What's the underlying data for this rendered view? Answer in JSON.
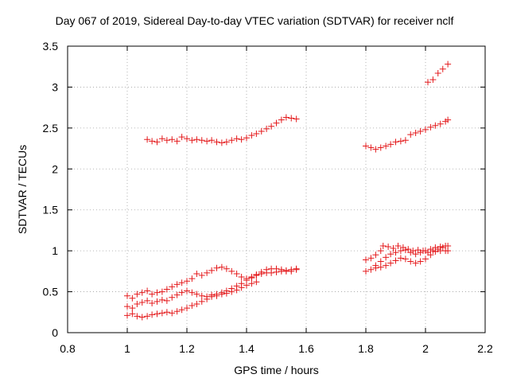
{
  "chart_data": {
    "type": "scatter",
    "title": "Day 067 of 2019, Sidereal Day-to-day VTEC variation (SDTVAR) for receiver nclf",
    "xlabel": "GPS time / hours",
    "ylabel": "SDTVAR / TECUs",
    "xlim": [
      0.8,
      2.2
    ],
    "ylim": [
      0,
      3.5
    ],
    "xticks": [
      0.8,
      1.0,
      1.2,
      1.4,
      1.6,
      1.8,
      2.0,
      2.2
    ],
    "xtick_labels": [
      "0.8",
      "1",
      "1.2",
      "1.4",
      "1.6",
      "1.8",
      "2",
      "2.2"
    ],
    "yticks": [
      0,
      0.5,
      1.0,
      1.5,
      2.0,
      2.5,
      3.0,
      3.5
    ],
    "ytick_labels": [
      "0",
      "0.5",
      "1",
      "1.5",
      "2",
      "2.5",
      "3",
      "3.5"
    ],
    "grid": true,
    "marker": "plus",
    "color": "#e41a1c",
    "series": [
      {
        "points": [
          [
            1.067,
            2.36
          ],
          [
            1.083,
            2.34
          ],
          [
            1.1,
            2.33
          ],
          [
            1.117,
            2.37
          ],
          [
            1.133,
            2.35
          ],
          [
            1.15,
            2.36
          ],
          [
            1.167,
            2.34
          ],
          [
            1.183,
            2.39
          ],
          [
            1.2,
            2.37
          ],
          [
            1.217,
            2.35
          ],
          [
            1.233,
            2.36
          ],
          [
            1.25,
            2.35
          ],
          [
            1.267,
            2.34
          ],
          [
            1.283,
            2.35
          ],
          [
            1.3,
            2.33
          ],
          [
            1.317,
            2.32
          ],
          [
            1.333,
            2.33
          ],
          [
            1.35,
            2.35
          ],
          [
            1.367,
            2.37
          ],
          [
            1.383,
            2.36
          ],
          [
            1.4,
            2.38
          ],
          [
            1.417,
            2.41
          ],
          [
            1.433,
            2.43
          ],
          [
            1.45,
            2.46
          ],
          [
            1.467,
            2.49
          ],
          [
            1.483,
            2.52
          ],
          [
            1.5,
            2.56
          ],
          [
            1.517,
            2.6
          ],
          [
            1.533,
            2.63
          ],
          [
            1.55,
            2.62
          ],
          [
            1.567,
            2.61
          ]
        ]
      },
      {
        "points": [
          [
            1.8,
            2.28
          ],
          [
            1.817,
            2.26
          ],
          [
            1.833,
            2.24
          ],
          [
            1.85,
            2.26
          ],
          [
            1.867,
            2.28
          ],
          [
            1.883,
            2.3
          ],
          [
            1.9,
            2.33
          ],
          [
            1.917,
            2.34
          ],
          [
            1.933,
            2.35
          ],
          [
            1.95,
            2.42
          ],
          [
            1.967,
            2.44
          ],
          [
            1.983,
            2.46
          ],
          [
            2.0,
            2.48
          ],
          [
            2.017,
            2.51
          ],
          [
            2.033,
            2.53
          ],
          [
            2.05,
            2.55
          ],
          [
            2.067,
            2.58
          ],
          [
            2.075,
            2.6
          ]
        ]
      },
      {
        "points": [
          [
            2.008,
            3.06
          ],
          [
            2.025,
            3.09
          ],
          [
            2.042,
            3.17
          ],
          [
            2.058,
            3.22
          ],
          [
            2.075,
            3.28
          ]
        ]
      },
      {
        "points": [
          [
            1.0,
            0.45
          ],
          [
            1.017,
            0.42
          ],
          [
            1.033,
            0.47
          ],
          [
            1.05,
            0.49
          ],
          [
            1.067,
            0.51
          ],
          [
            1.083,
            0.47
          ],
          [
            1.1,
            0.49
          ],
          [
            1.117,
            0.5
          ],
          [
            1.133,
            0.53
          ],
          [
            1.15,
            0.56
          ],
          [
            1.167,
            0.59
          ],
          [
            1.183,
            0.61
          ],
          [
            1.2,
            0.63
          ],
          [
            1.217,
            0.66
          ],
          [
            1.233,
            0.72
          ],
          [
            1.25,
            0.7
          ],
          [
            1.267,
            0.73
          ],
          [
            1.283,
            0.76
          ],
          [
            1.3,
            0.79
          ],
          [
            1.317,
            0.8
          ],
          [
            1.333,
            0.78
          ],
          [
            1.35,
            0.75
          ],
          [
            1.367,
            0.72
          ],
          [
            1.383,
            0.68
          ],
          [
            1.4,
            0.66
          ],
          [
            1.417,
            0.68
          ],
          [
            1.433,
            0.7
          ],
          [
            1.45,
            0.72
          ],
          [
            1.467,
            0.73
          ],
          [
            1.483,
            0.73
          ],
          [
            1.5,
            0.74
          ],
          [
            1.517,
            0.75
          ],
          [
            1.533,
            0.76
          ],
          [
            1.55,
            0.77
          ],
          [
            1.567,
            0.78
          ]
        ]
      },
      {
        "points": [
          [
            1.0,
            0.32
          ],
          [
            1.017,
            0.3
          ],
          [
            1.033,
            0.35
          ],
          [
            1.05,
            0.37
          ],
          [
            1.067,
            0.39
          ],
          [
            1.083,
            0.36
          ],
          [
            1.1,
            0.38
          ],
          [
            1.117,
            0.4
          ],
          [
            1.133,
            0.39
          ],
          [
            1.15,
            0.43
          ],
          [
            1.167,
            0.46
          ],
          [
            1.183,
            0.49
          ],
          [
            1.2,
            0.51
          ],
          [
            1.217,
            0.49
          ],
          [
            1.233,
            0.47
          ],
          [
            1.25,
            0.45
          ],
          [
            1.267,
            0.44
          ],
          [
            1.283,
            0.46
          ],
          [
            1.3,
            0.47
          ],
          [
            1.317,
            0.49
          ],
          [
            1.333,
            0.51
          ],
          [
            1.35,
            0.54
          ],
          [
            1.367,
            0.57
          ],
          [
            1.383,
            0.6
          ],
          [
            1.4,
            0.64
          ],
          [
            1.417,
            0.67
          ],
          [
            1.433,
            0.71
          ],
          [
            1.45,
            0.74
          ],
          [
            1.467,
            0.77
          ],
          [
            1.483,
            0.78
          ],
          [
            1.5,
            0.78
          ],
          [
            1.517,
            0.77
          ],
          [
            1.533,
            0.75
          ],
          [
            1.55,
            0.75
          ],
          [
            1.567,
            0.77
          ]
        ]
      },
      {
        "points": [
          [
            1.0,
            0.21
          ],
          [
            1.017,
            0.23
          ],
          [
            1.033,
            0.2
          ],
          [
            1.05,
            0.19
          ],
          [
            1.067,
            0.2
          ],
          [
            1.083,
            0.22
          ],
          [
            1.1,
            0.23
          ],
          [
            1.117,
            0.24
          ],
          [
            1.133,
            0.25
          ],
          [
            1.15,
            0.24
          ],
          [
            1.167,
            0.26
          ],
          [
            1.183,
            0.28
          ],
          [
            1.2,
            0.3
          ],
          [
            1.217,
            0.33
          ],
          [
            1.233,
            0.35
          ],
          [
            1.25,
            0.38
          ],
          [
            1.267,
            0.41
          ],
          [
            1.283,
            0.44
          ],
          [
            1.3,
            0.45
          ],
          [
            1.317,
            0.47
          ],
          [
            1.333,
            0.48
          ],
          [
            1.35,
            0.5
          ],
          [
            1.367,
            0.52
          ],
          [
            1.383,
            0.55
          ],
          [
            1.4,
            0.58
          ],
          [
            1.417,
            0.6
          ],
          [
            1.433,
            0.62
          ]
        ]
      },
      {
        "points": [
          [
            1.8,
            0.89
          ],
          [
            1.817,
            0.91
          ],
          [
            1.833,
            0.95
          ],
          [
            1.85,
            1.0
          ],
          [
            1.858,
            1.06
          ],
          [
            1.875,
            1.05
          ],
          [
            1.892,
            1.03
          ],
          [
            1.908,
            1.06
          ],
          [
            1.925,
            1.04
          ],
          [
            1.942,
            1.02
          ],
          [
            1.958,
            1.0
          ],
          [
            1.975,
            1.01
          ],
          [
            1.992,
            1.0
          ],
          [
            2.008,
            0.98
          ],
          [
            2.025,
            1.0
          ],
          [
            2.042,
            1.02
          ],
          [
            2.058,
            1.04
          ],
          [
            2.075,
            1.06
          ]
        ]
      },
      {
        "points": [
          [
            1.8,
            0.75
          ],
          [
            1.817,
            0.77
          ],
          [
            1.833,
            0.79
          ],
          [
            1.85,
            0.8
          ],
          [
            1.867,
            0.82
          ],
          [
            1.883,
            0.85
          ],
          [
            1.9,
            0.88
          ],
          [
            1.917,
            0.91
          ],
          [
            1.933,
            0.9
          ],
          [
            1.95,
            0.87
          ],
          [
            1.967,
            0.85
          ],
          [
            1.983,
            0.87
          ],
          [
            2.0,
            0.9
          ],
          [
            2.017,
            0.95
          ],
          [
            2.033,
            0.99
          ],
          [
            2.05,
            1.0
          ],
          [
            2.067,
            1.0
          ],
          [
            2.075,
            1.0
          ]
        ]
      },
      {
        "points": [
          [
            1.833,
            0.82
          ],
          [
            1.85,
            0.87
          ],
          [
            1.867,
            0.92
          ],
          [
            1.883,
            0.96
          ],
          [
            1.9,
            0.98
          ],
          [
            1.917,
            1.0
          ],
          [
            1.933,
            1.01
          ],
          [
            1.95,
            0.98
          ],
          [
            1.967,
            0.96
          ],
          [
            1.983,
            0.98
          ],
          [
            2.0,
            1.0
          ],
          [
            2.017,
            1.02
          ],
          [
            2.033,
            1.04
          ],
          [
            2.05,
            1.05
          ],
          [
            2.067,
            1.06
          ]
        ]
      }
    ]
  }
}
